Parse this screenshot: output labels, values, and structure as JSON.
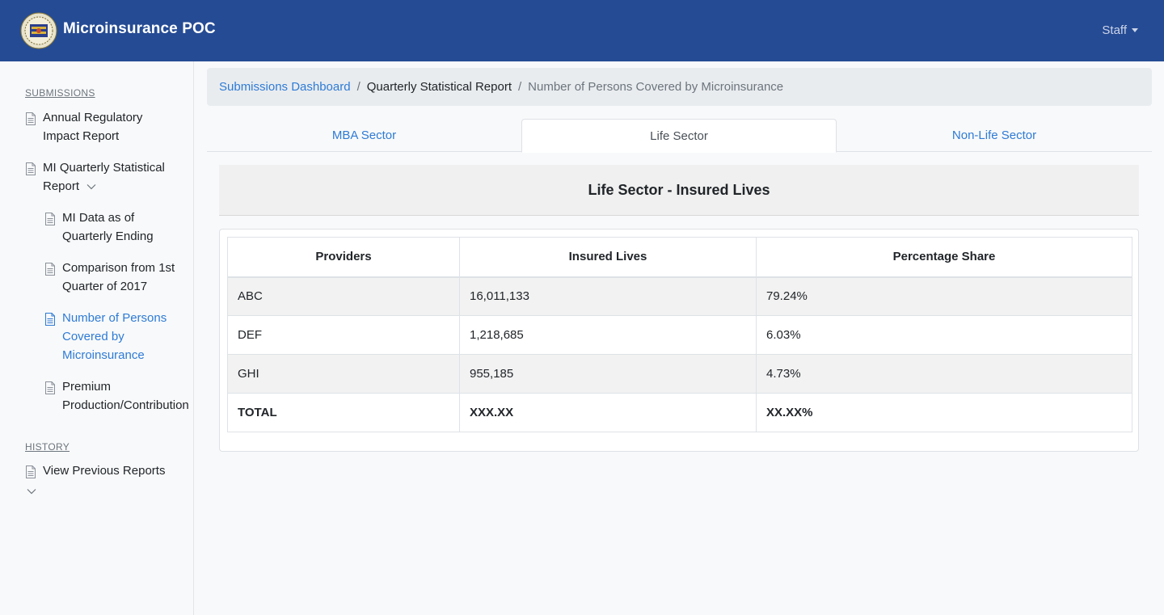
{
  "app": {
    "title": "Microinsurance POC",
    "user_menu": "Staff"
  },
  "sidebar": {
    "sections": [
      {
        "title": "SUBMISSIONS"
      },
      {
        "title": "HISTORY"
      }
    ],
    "items": [
      {
        "label": "Annual Regulatory Impact Report"
      },
      {
        "label": "MI Quarterly Statistical Report"
      },
      {
        "label": "MI Data as of Quarterly Ending"
      },
      {
        "label": "Comparison from 1st Quarter of 2017"
      },
      {
        "label": "Number of Persons Covered by Microinsurance"
      },
      {
        "label": "Premium Production/Contribution"
      },
      {
        "label": "View Previous Reports"
      }
    ]
  },
  "breadcrumb": {
    "home": "Submissions Dashboard",
    "parent": "Quarterly Statistical Report",
    "current": "Number of Persons Covered by Microinsurance"
  },
  "tabs": [
    {
      "label": "MBA Sector"
    },
    {
      "label": "Life Sector"
    },
    {
      "label": "Non-Life Sector"
    }
  ],
  "report": {
    "title": "Life Sector - Insured Lives",
    "columns": [
      "Providers",
      "Insured Lives",
      "Percentage Share"
    ],
    "rows": [
      [
        "ABC",
        "16,011,133",
        "79.24%"
      ],
      [
        "DEF",
        "1,218,685",
        "6.03%"
      ],
      [
        "GHI",
        "955,185",
        "4.73%"
      ],
      [
        "TOTAL",
        "XXX.XX",
        "XX.XX%"
      ]
    ]
  },
  "colors": {
    "topbar": "#254b94",
    "link": "#2e7bd6"
  }
}
